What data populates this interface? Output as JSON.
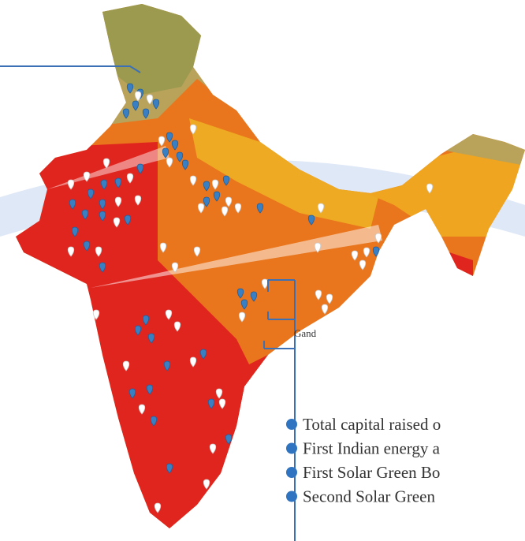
{
  "annotation": "Gand",
  "timeline": [
    "Total capital raised o",
    "First Indian energy a",
    "First Solar Green Bo",
    "Second Solar Green"
  ]
}
